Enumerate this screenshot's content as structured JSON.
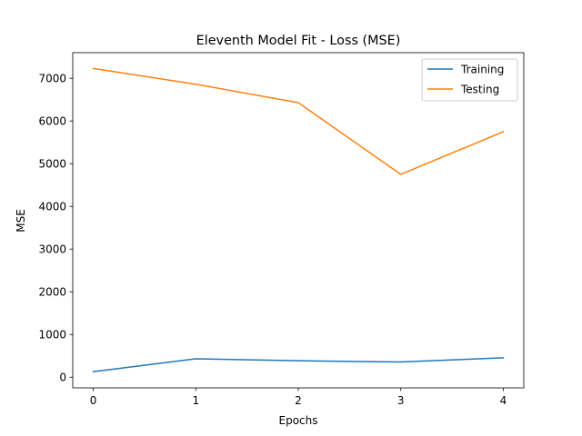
{
  "chart_data": {
    "type": "line",
    "title": "Eleventh Model Fit - Loss (MSE)",
    "xlabel": "Epochs",
    "ylabel": "MSE",
    "x": [
      0,
      1,
      2,
      3,
      4
    ],
    "xlim": [
      -0.2,
      4.2
    ],
    "ylim": [
      -250,
      7600
    ],
    "xticks": [
      0,
      1,
      2,
      3,
      4
    ],
    "yticks": [
      0,
      1000,
      2000,
      3000,
      4000,
      5000,
      6000,
      7000
    ],
    "grid": false,
    "legend_position": "top-right",
    "series": [
      {
        "name": "Training",
        "color": "#1f77b4",
        "values": [
          130,
          430,
          385,
          355,
          455
        ]
      },
      {
        "name": "Testing",
        "color": "#ff7f0e",
        "values": [
          7230,
          6860,
          6430,
          4750,
          5750
        ]
      }
    ]
  }
}
